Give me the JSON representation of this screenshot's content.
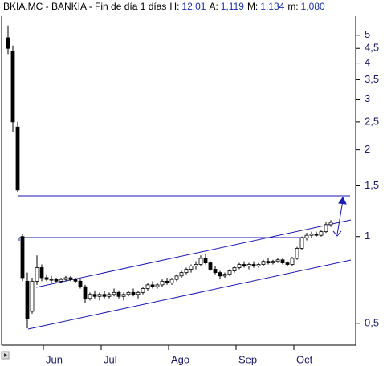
{
  "chart_data": {
    "type": "candlestick",
    "title": "BKIA.MC - BANKIA - Fin de día 1 días",
    "info": [
      {
        "label": "H:",
        "value": "12:01"
      },
      {
        "label": "A:",
        "value": "1,119"
      },
      {
        "label": "M:",
        "value": "1,134"
      },
      {
        "label": "m:",
        "value": "1,080"
      }
    ],
    "log_scale": true,
    "ylim": [
      0.42,
      5.9
    ],
    "yticks": [
      5,
      {
        "value": 4.5,
        "label": "4,5"
      },
      4,
      {
        "value": 3.5,
        "label": "3,5"
      },
      3,
      {
        "value": 2.5,
        "label": "2,5"
      },
      2,
      {
        "value": 1.5,
        "label": "1,5"
      },
      1,
      {
        "value": 0.5,
        "label": "0,5"
      }
    ],
    "up_color": "#ffffff",
    "down_color": "#000000",
    "line_color": "#000000",
    "categories": [
      null,
      null,
      null,
      null,
      null,
      null,
      null,
      null,
      null,
      "Jun",
      null,
      null,
      null,
      null,
      null,
      null,
      null,
      null,
      null,
      null,
      null,
      "Jul",
      null,
      null,
      null,
      null,
      null,
      null,
      null,
      null,
      null,
      null,
      null,
      null,
      null,
      "Ago",
      null,
      null,
      null,
      null,
      null,
      null,
      null,
      null,
      null,
      null,
      null,
      null,
      null,
      "Sep",
      null,
      null,
      null,
      null,
      null,
      null,
      null,
      null,
      null,
      null,
      null,
      "Oct",
      null,
      null,
      null,
      null,
      null,
      null
    ],
    "candles": [
      [
        4.9,
        5.4,
        4.3,
        4.5
      ],
      [
        4.4,
        4.6,
        2.3,
        2.5
      ],
      [
        2.4,
        2.5,
        1.43,
        1.45
      ],
      [
        1.0,
        1.02,
        0.7,
        0.72
      ],
      [
        0.7,
        0.75,
        0.48,
        0.52
      ],
      [
        0.55,
        0.72,
        0.54,
        0.7
      ],
      [
        0.7,
        0.86,
        0.68,
        0.78
      ],
      [
        0.78,
        0.8,
        0.7,
        0.72
      ],
      [
        0.72,
        0.74,
        0.7,
        0.71
      ],
      [
        0.71,
        0.73,
        0.69,
        0.71
      ],
      [
        0.71,
        0.72,
        0.69,
        0.7
      ],
      [
        0.7,
        0.72,
        0.69,
        0.71
      ],
      [
        0.71,
        0.73,
        0.7,
        0.72
      ],
      [
        0.72,
        0.73,
        0.7,
        0.71
      ],
      [
        0.71,
        0.72,
        0.69,
        0.7
      ],
      [
        0.7,
        0.71,
        0.66,
        0.67
      ],
      [
        0.67,
        0.68,
        0.59,
        0.61
      ],
      [
        0.61,
        0.64,
        0.6,
        0.63
      ],
      [
        0.63,
        0.65,
        0.61,
        0.62
      ],
      [
        0.62,
        0.64,
        0.6,
        0.63
      ],
      [
        0.63,
        0.65,
        0.61,
        0.62
      ],
      [
        0.62,
        0.64,
        0.61,
        0.63
      ],
      [
        0.63,
        0.66,
        0.62,
        0.64
      ],
      [
        0.64,
        0.65,
        0.61,
        0.62
      ],
      [
        0.62,
        0.64,
        0.6,
        0.63
      ],
      [
        0.63,
        0.65,
        0.62,
        0.64
      ],
      [
        0.64,
        0.66,
        0.62,
        0.63
      ],
      [
        0.63,
        0.65,
        0.61,
        0.64
      ],
      [
        0.64,
        0.67,
        0.63,
        0.66
      ],
      [
        0.66,
        0.69,
        0.65,
        0.68
      ],
      [
        0.68,
        0.7,
        0.66,
        0.67
      ],
      [
        0.67,
        0.69,
        0.66,
        0.68
      ],
      [
        0.68,
        0.71,
        0.67,
        0.7
      ],
      [
        0.7,
        0.72,
        0.68,
        0.69
      ],
      [
        0.69,
        0.72,
        0.68,
        0.71
      ],
      [
        0.71,
        0.74,
        0.7,
        0.73
      ],
      [
        0.73,
        0.76,
        0.72,
        0.75
      ],
      [
        0.75,
        0.78,
        0.74,
        0.77
      ],
      [
        0.77,
        0.8,
        0.75,
        0.79
      ],
      [
        0.79,
        0.82,
        0.77,
        0.8
      ],
      [
        0.8,
        0.86,
        0.79,
        0.84
      ],
      [
        0.84,
        0.87,
        0.8,
        0.81
      ],
      [
        0.81,
        0.82,
        0.76,
        0.77
      ],
      [
        0.77,
        0.79,
        0.74,
        0.75
      ],
      [
        0.75,
        0.76,
        0.71,
        0.73
      ],
      [
        0.73,
        0.75,
        0.72,
        0.74
      ],
      [
        0.74,
        0.77,
        0.73,
        0.76
      ],
      [
        0.76,
        0.79,
        0.75,
        0.78
      ],
      [
        0.78,
        0.81,
        0.77,
        0.8
      ],
      [
        0.8,
        0.82,
        0.78,
        0.79
      ],
      [
        0.79,
        0.81,
        0.77,
        0.8
      ],
      [
        0.8,
        0.82,
        0.78,
        0.79
      ],
      [
        0.79,
        0.81,
        0.78,
        0.8
      ],
      [
        0.8,
        0.83,
        0.79,
        0.82
      ],
      [
        0.82,
        0.84,
        0.8,
        0.81
      ],
      [
        0.81,
        0.83,
        0.8,
        0.82
      ],
      [
        0.82,
        0.84,
        0.81,
        0.83
      ],
      [
        0.83,
        0.84,
        0.8,
        0.81
      ],
      [
        0.81,
        0.82,
        0.79,
        0.8
      ],
      [
        0.8,
        0.85,
        0.79,
        0.84
      ],
      [
        0.84,
        0.92,
        0.83,
        0.91
      ],
      [
        0.91,
        1.0,
        0.9,
        0.99
      ],
      [
        0.99,
        1.03,
        0.97,
        1.01
      ],
      [
        1.01,
        1.04,
        0.99,
        1.02
      ],
      [
        1.02,
        1.04,
        1.0,
        1.01
      ],
      [
        1.01,
        1.05,
        1.0,
        1.04
      ],
      [
        1.04,
        1.12,
        1.03,
        1.1
      ],
      [
        1.1,
        1.14,
        1.08,
        1.12
      ]
    ]
  }
}
